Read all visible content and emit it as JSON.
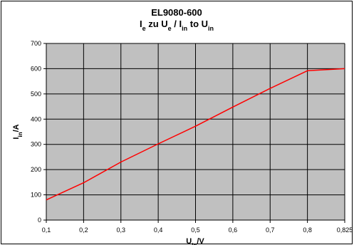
{
  "chart_data": {
    "type": "line",
    "title": "EL9080-600",
    "subtitle": {
      "parts": [
        {
          "text": "I",
          "sub": false
        },
        {
          "text": "e",
          "sub": true
        },
        {
          "text": " zu U",
          "sub": false
        },
        {
          "text": "e",
          "sub": true
        },
        {
          "text": " / I",
          "sub": false
        },
        {
          "text": "in",
          "sub": true
        },
        {
          "text": " to U",
          "sub": false
        },
        {
          "text": "in",
          "sub": true
        }
      ]
    },
    "xlabel": {
      "parts": [
        {
          "text": "U",
          "sub": false
        },
        {
          "text": "in",
          "sub": true
        },
        {
          "text": "/V",
          "sub": false
        }
      ]
    },
    "ylabel": {
      "parts": [
        {
          "text": "I",
          "sub": false
        },
        {
          "text": "in",
          "sub": true
        },
        {
          "text": "/A",
          "sub": false
        }
      ]
    },
    "x_categories": [
      "0,1",
      "0,2",
      "0,3",
      "0,4",
      "0,5",
      "0,6",
      "0,7",
      "0,8",
      "0,825"
    ],
    "y_ticks": [
      0,
      100,
      200,
      300,
      400,
      500,
      600,
      700
    ],
    "ylim": [
      0,
      700
    ],
    "grid": true,
    "series": [
      {
        "color": "#ff0000",
        "values": [
          80,
          148,
          230,
          302,
          372,
          448,
          522,
          592,
          600
        ]
      }
    ],
    "plot_background": "#c0c0c0",
    "grid_color": "#000000"
  }
}
